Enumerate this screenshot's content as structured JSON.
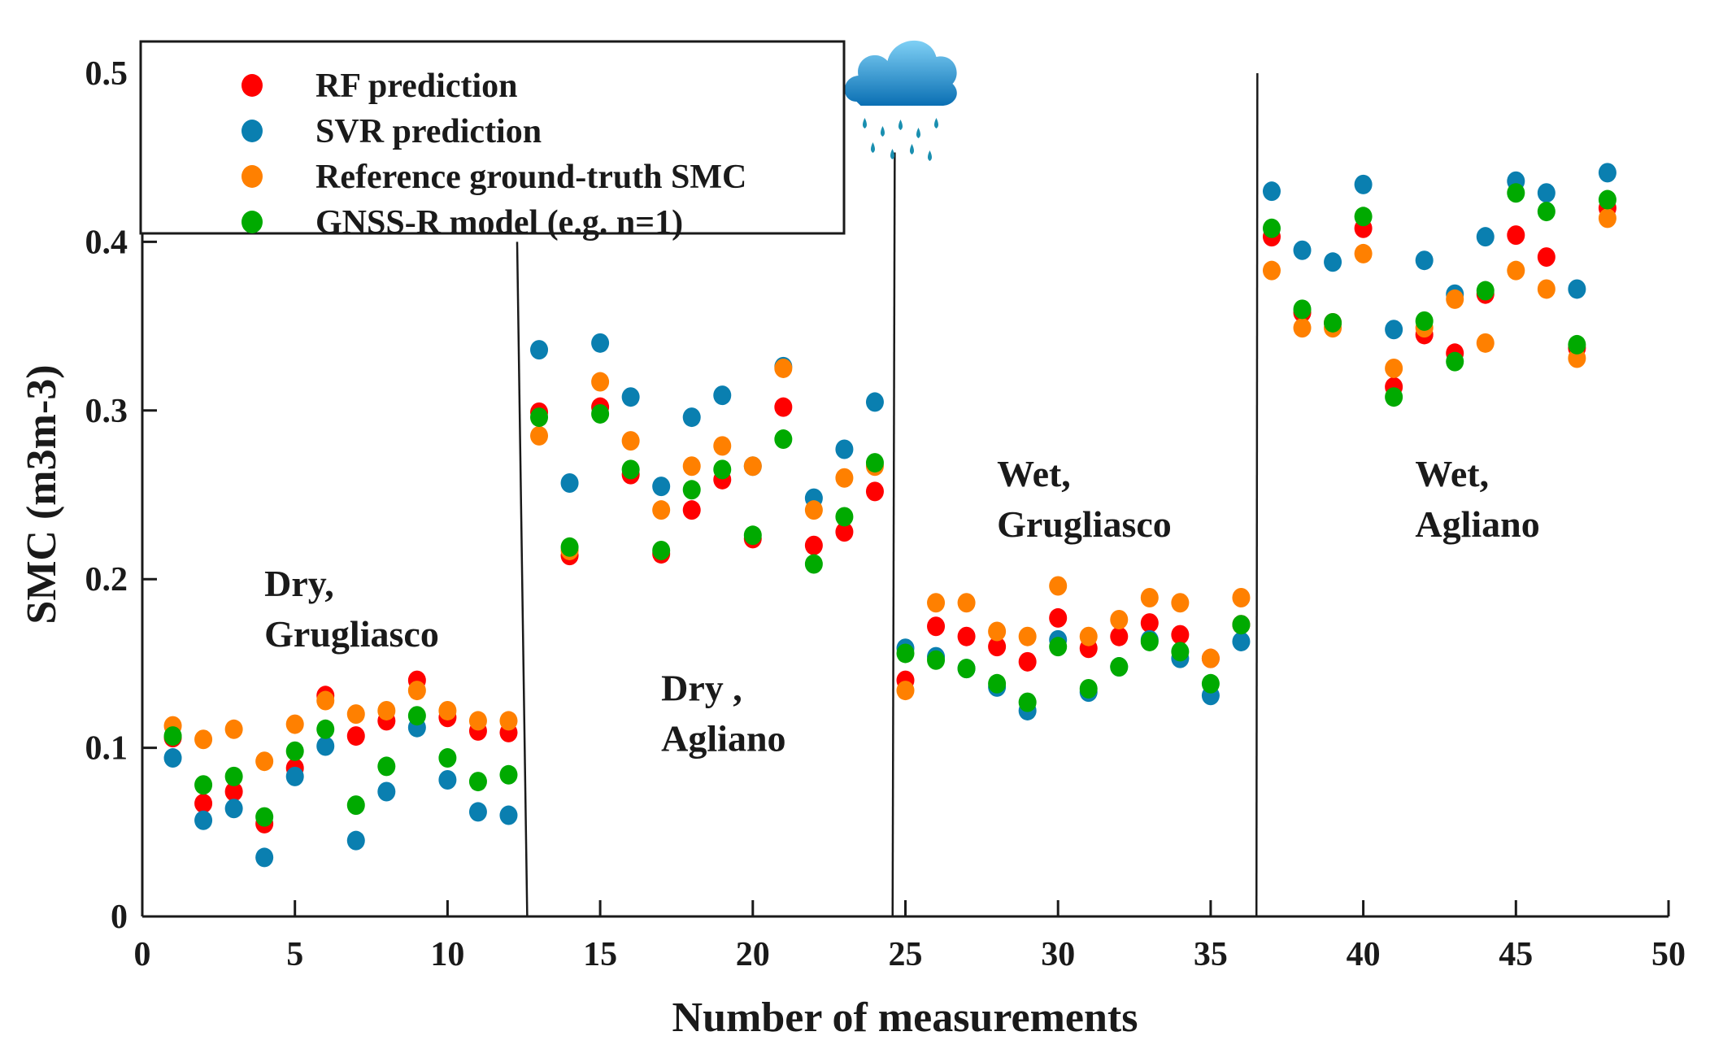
{
  "chart_data": {
    "type": "scatter",
    "title": "",
    "xlabel": "Number of measurements",
    "ylabel": "SMC (m3m-3)",
    "xlim": [
      0,
      50
    ],
    "ylim": [
      0,
      0.5
    ],
    "xticks": [
      0,
      5,
      10,
      15,
      20,
      25,
      30,
      35,
      40,
      45,
      50
    ],
    "yticks": [
      0,
      0.1,
      0.2,
      0.3,
      0.4,
      0.5
    ],
    "grid": false,
    "legend_position": "top-left",
    "x": [
      1,
      2,
      3,
      4,
      5,
      6,
      7,
      8,
      9,
      10,
      11,
      12,
      13,
      14,
      15,
      16,
      17,
      18,
      19,
      20,
      21,
      22,
      23,
      24,
      25,
      26,
      27,
      28,
      29,
      30,
      31,
      32,
      33,
      34,
      35,
      36,
      37,
      38,
      39,
      40,
      41,
      42,
      43,
      44,
      45,
      46,
      47,
      48
    ],
    "series": [
      {
        "name": "RF prediction",
        "color": "#ff0000",
        "values": [
          0.106,
          0.067,
          0.074,
          0.055,
          0.088,
          0.131,
          0.107,
          0.116,
          0.14,
          0.118,
          0.11,
          0.109,
          0.299,
          0.214,
          0.302,
          0.262,
          0.215,
          0.241,
          0.259,
          0.224,
          0.302,
          0.22,
          0.228,
          0.252,
          0.14,
          0.172,
          0.166,
          0.16,
          0.151,
          0.177,
          0.159,
          0.166,
          0.174,
          0.167,
          0.153,
          0.173,
          0.403,
          0.358,
          0.352,
          0.408,
          0.314,
          0.345,
          0.334,
          0.369,
          0.404,
          0.391,
          0.337,
          0.42
        ]
      },
      {
        "name": "SVR prediction",
        "color": "#0a7fb0",
        "values": [
          0.094,
          0.057,
          0.064,
          0.035,
          0.083,
          0.101,
          0.045,
          0.074,
          0.112,
          0.081,
          0.062,
          0.06,
          0.336,
          0.257,
          0.34,
          0.308,
          0.255,
          0.296,
          0.309,
          0.267,
          0.326,
          0.248,
          0.277,
          0.305,
          0.159,
          0.154,
          0.147,
          0.136,
          0.122,
          0.164,
          0.133,
          0.148,
          0.164,
          0.153,
          0.131,
          0.163,
          0.43,
          0.395,
          0.388,
          0.434,
          0.348,
          0.389,
          0.369,
          0.403,
          0.436,
          0.429,
          0.372,
          0.441
        ]
      },
      {
        "name": "Reference ground-truth SMC",
        "color": "#ff8000",
        "values": [
          0.113,
          0.105,
          0.111,
          0.092,
          0.114,
          0.128,
          0.12,
          0.122,
          0.134,
          0.122,
          0.116,
          0.116,
          0.285,
          0.217,
          0.317,
          0.282,
          0.241,
          0.267,
          0.279,
          0.267,
          0.325,
          0.241,
          0.26,
          0.267,
          0.134,
          0.186,
          0.186,
          0.169,
          0.166,
          0.196,
          0.166,
          0.176,
          0.189,
          0.186,
          0.153,
          0.189,
          0.383,
          0.349,
          0.349,
          0.393,
          0.325,
          0.349,
          0.366,
          0.34,
          0.383,
          0.372,
          0.331,
          0.414
        ]
      },
      {
        "name": "GNSS-R model (e.g. n=1)",
        "color": "#00aa00",
        "values": [
          0.107,
          0.078,
          0.083,
          0.059,
          0.098,
          0.111,
          0.066,
          0.089,
          0.119,
          0.094,
          0.08,
          0.084,
          0.296,
          0.219,
          0.298,
          0.265,
          0.217,
          0.253,
          0.265,
          0.226,
          0.283,
          0.209,
          0.237,
          0.269,
          0.156,
          0.152,
          0.147,
          0.138,
          0.127,
          0.16,
          0.135,
          0.148,
          0.163,
          0.157,
          0.138,
          0.173,
          0.408,
          0.36,
          0.352,
          0.415,
          0.308,
          0.353,
          0.329,
          0.371,
          0.429,
          0.418,
          0.339,
          0.425
        ]
      }
    ],
    "separators": [
      {
        "x_top": 12.28,
        "x_bottom": 12.61,
        "y_top": 0.4
      },
      {
        "x_top": 24.65,
        "x_bottom": 24.58,
        "y_top": 0.453
      },
      {
        "x_top": 36.53,
        "x_bottom": 36.5,
        "y_top": 0.5
      }
    ],
    "annotations": [
      {
        "lines": [
          "Dry,",
          "Grugliasco"
        ],
        "x": 4.0,
        "y": 0.19
      },
      {
        "lines": [
          "Dry ,",
          "Agliano"
        ],
        "x": 17.0,
        "y": 0.128
      },
      {
        "lines": [
          "Wet,",
          "Grugliasco"
        ],
        "x": 28.0,
        "y": 0.255
      },
      {
        "lines": [
          "Wet,",
          "Agliano"
        ],
        "x": 41.7,
        "y": 0.255
      }
    ],
    "rain_icon": {
      "x": 24.6,
      "y": 0.5
    }
  }
}
